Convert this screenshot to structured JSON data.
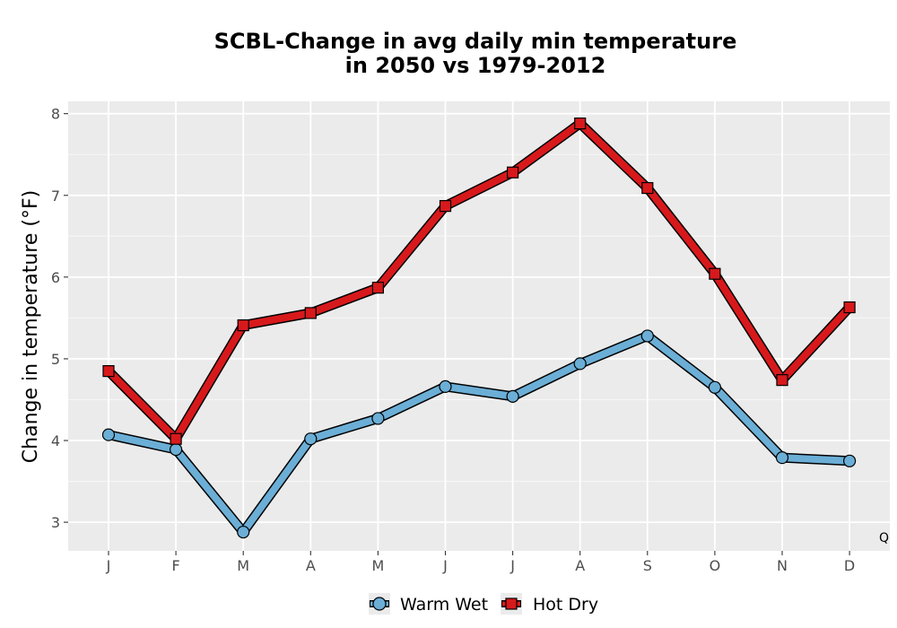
{
  "chart_data": {
    "type": "line",
    "title_lines": [
      "SCBL-Change in avg daily min temperature",
      "in 2050 vs 1979-2012"
    ],
    "xlabel": "",
    "ylabel": "Change in temperature (°F)",
    "categories": [
      "J",
      "F",
      "M",
      "A",
      "M",
      "J",
      "J",
      "A",
      "S",
      "O",
      "N",
      "D"
    ],
    "ylim": [
      2.65,
      8.15
    ],
    "yticks": [
      3,
      4,
      5,
      6,
      7,
      8
    ],
    "grid": true,
    "legend_position": "bottom",
    "corner_label": "Q",
    "series": [
      {
        "name": "Warm Wet",
        "marker": "circle",
        "color": "#6baed6",
        "values": [
          4.07,
          3.89,
          2.88,
          4.02,
          4.27,
          4.66,
          4.54,
          4.94,
          5.28,
          4.65,
          3.79,
          3.75
        ]
      },
      {
        "name": "Hot Dry",
        "marker": "square",
        "color": "#d7191c",
        "values": [
          4.85,
          4.02,
          5.41,
          5.56,
          5.87,
          6.87,
          7.28,
          7.88,
          7.09,
          6.04,
          4.74,
          5.63
        ]
      }
    ]
  }
}
